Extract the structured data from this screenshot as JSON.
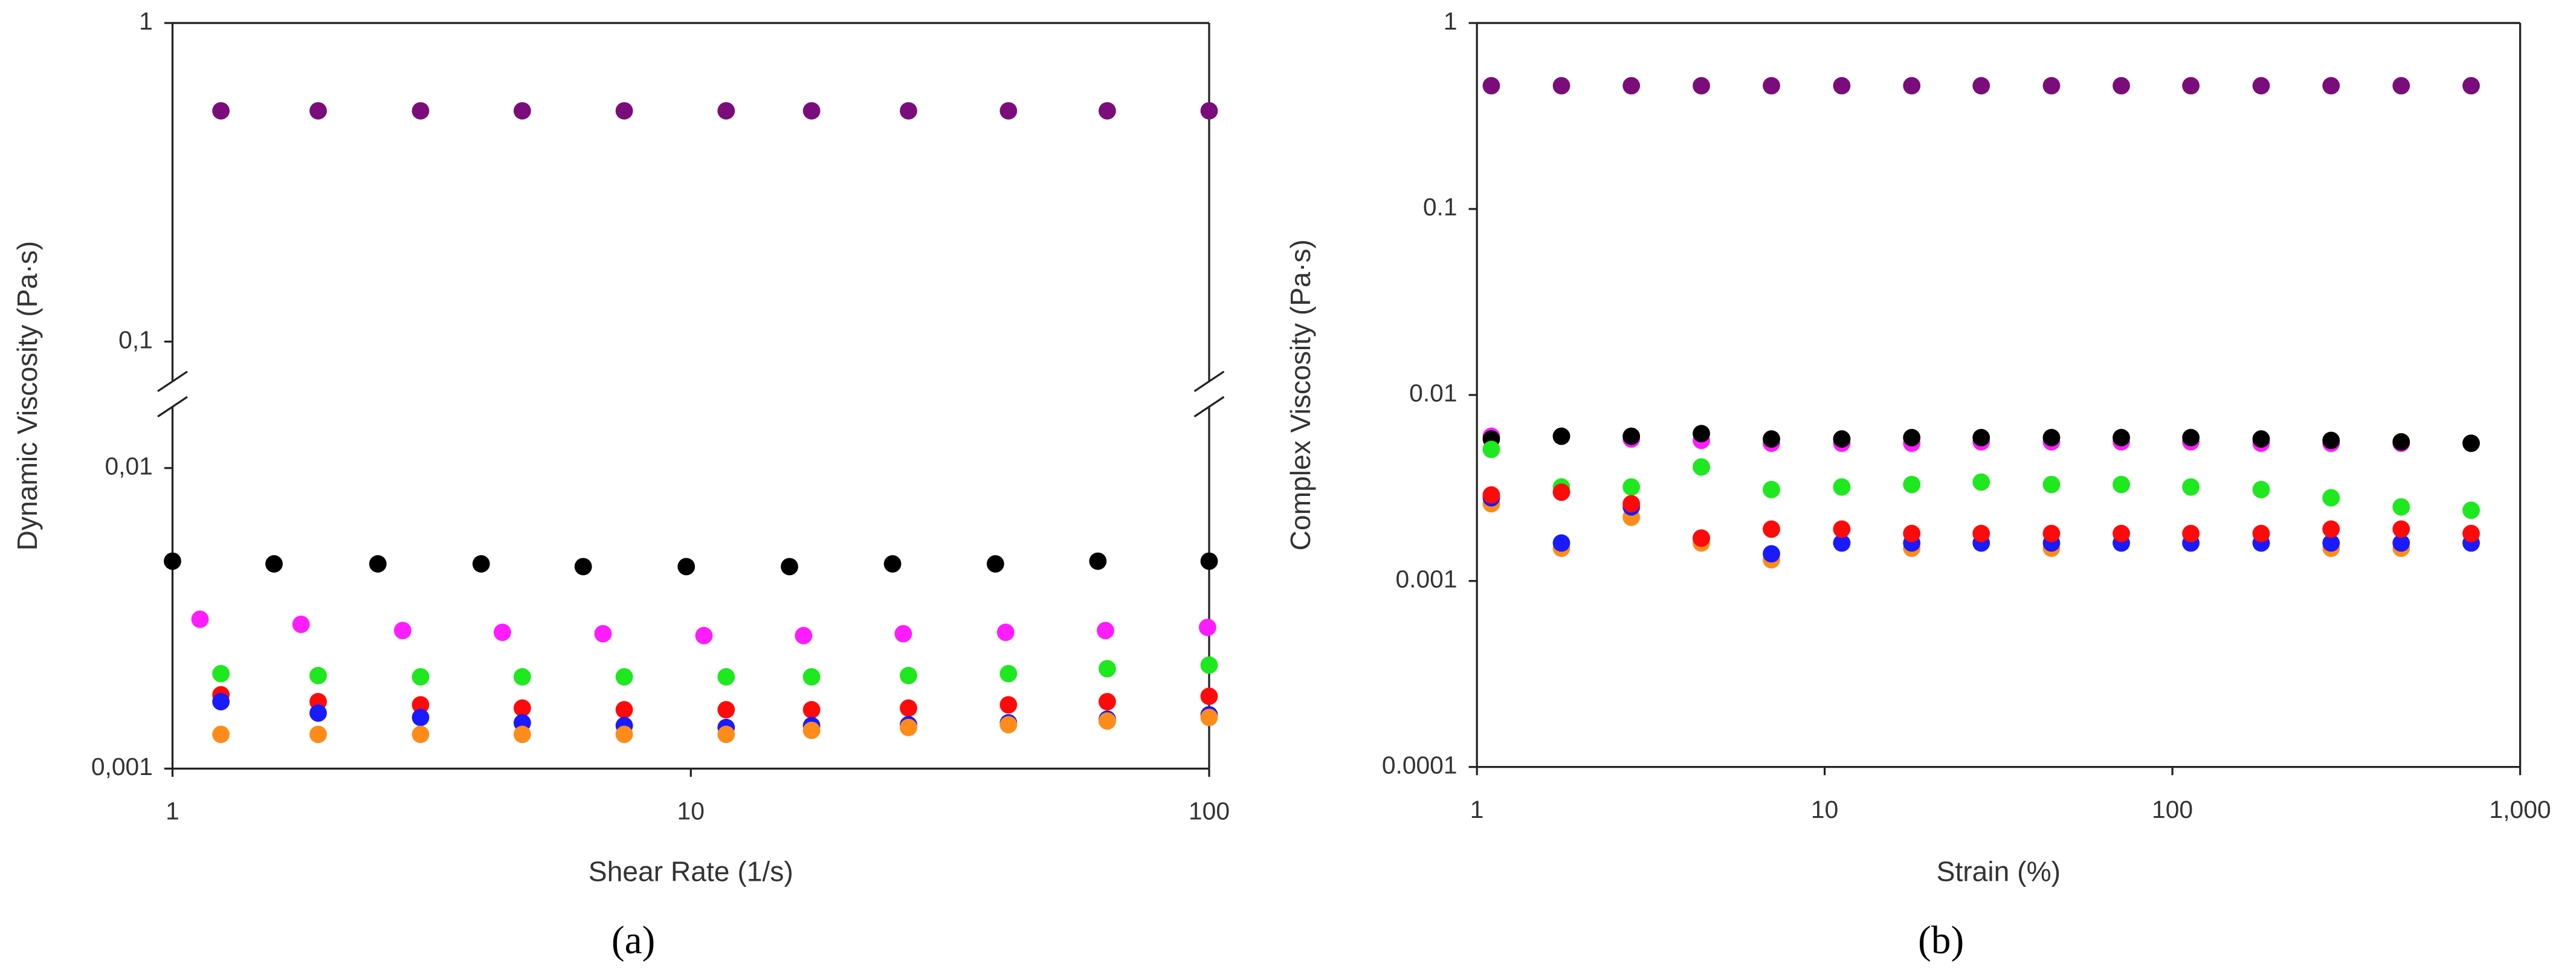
{
  "chart_data": [
    {
      "type": "scatter",
      "caption": "(a)",
      "xlabel": "Shear Rate (1/s)",
      "ylabel": "Dynamic Viscosity (Pa·s)",
      "xscale": "log",
      "yscale": "log",
      "xlim": [
        1,
        100
      ],
      "ylim": [
        0.001,
        1
      ],
      "ybreak": [
        0.016,
        0.075
      ],
      "xticks": [
        1,
        10,
        100
      ],
      "yticks": [
        {
          "value": 0.001,
          "label": "0,001"
        },
        {
          "value": 0.01,
          "label": "0,01"
        },
        {
          "value": 0.1,
          "label": "0,1"
        },
        1
      ],
      "series": [
        {
          "color": "#7b0c7b",
          "x": [
            1.24,
            1.91,
            3.01,
            4.73,
            7.44,
            11.7,
            17.1,
            26.3,
            41,
            63.6,
            100
          ],
          "values": [
            0.53,
            0.53,
            0.53,
            0.53,
            0.53,
            0.53,
            0.53,
            0.53,
            0.53,
            0.53,
            0.53
          ]
        },
        {
          "color": "#000000",
          "x": [
            1,
            1.57,
            2.49,
            3.94,
            6.2,
            9.8,
            15.5,
            24.5,
            38.7,
            61,
            100
          ],
          "values": [
            0.0049,
            0.0048,
            0.0048,
            0.0048,
            0.0047,
            0.0047,
            0.0047,
            0.0048,
            0.0048,
            0.0049,
            0.0049
          ]
        },
        {
          "color": "#ff1cff",
          "x": [
            1.13,
            1.77,
            2.78,
            4.33,
            6.77,
            10.6,
            16.5,
            25.7,
            40.5,
            63.1,
            99.3
          ],
          "values": [
            0.00314,
            0.00302,
            0.00288,
            0.00284,
            0.00281,
            0.00277,
            0.00277,
            0.00281,
            0.00284,
            0.00288,
            0.00295
          ]
        },
        {
          "color": "#1ee81e",
          "x": [
            1.24,
            1.91,
            3.01,
            4.73,
            7.44,
            11.7,
            17.1,
            26.3,
            41,
            63.6,
            100
          ],
          "values": [
            0.00207,
            0.00204,
            0.00202,
            0.00202,
            0.00202,
            0.00202,
            0.00202,
            0.00204,
            0.00207,
            0.00215,
            0.00221
          ]
        },
        {
          "color": "#ff0a0a",
          "x": [
            1.24,
            1.91,
            3.01,
            4.73,
            7.44,
            11.7,
            17.1,
            26.3,
            41,
            63.6,
            100
          ],
          "values": [
            0.00176,
            0.00167,
            0.00163,
            0.00159,
            0.00157,
            0.00157,
            0.00157,
            0.00159,
            0.00163,
            0.00167,
            0.00174
          ]
        },
        {
          "color": "#1a1aff",
          "x": [
            1.24,
            1.91,
            3.01,
            4.73,
            7.44,
            11.7,
            17.1,
            26.3,
            41,
            63.6,
            100
          ],
          "values": [
            0.00167,
            0.00153,
            0.00148,
            0.00142,
            0.00139,
            0.00137,
            0.00139,
            0.0014,
            0.00142,
            0.00146,
            0.00151
          ]
        },
        {
          "color": "#ff8c1a",
          "x": [
            1.24,
            1.91,
            3.01,
            4.73,
            7.44,
            11.7,
            17.1,
            26.3,
            41,
            63.6,
            100
          ],
          "values": [
            0.0013,
            0.0013,
            0.0013,
            0.0013,
            0.0013,
            0.0013,
            0.00134,
            0.00137,
            0.0014,
            0.00144,
            0.00148
          ]
        }
      ]
    },
    {
      "type": "scatter",
      "caption": "(b)",
      "xlabel": "Strain (%)",
      "ylabel": "Complex Viscosity (Pa·s)",
      "xscale": "log",
      "yscale": "log",
      "xlim": [
        1,
        1000
      ],
      "ylim": [
        0.0001,
        1
      ],
      "xticks": [
        1,
        10,
        100,
        {
          "value": 1000,
          "label": "1,000"
        }
      ],
      "yticks": [
        0.0001,
        0.001,
        0.01,
        0.1,
        1
      ],
      "series": [
        {
          "color": "#7b0c7b",
          "x": [
            1.1,
            1.75,
            2.78,
            4.42,
            7.03,
            11.2,
            17.8,
            28.2,
            44.9,
            71.3,
            113,
            180,
            286,
            455,
            723
          ],
          "values": [
            0.46,
            0.46,
            0.46,
            0.46,
            0.46,
            0.46,
            0.46,
            0.46,
            0.46,
            0.46,
            0.46,
            0.46,
            0.46,
            0.46,
            0.46
          ]
        },
        {
          "color": "#ff1cff",
          "x": [
            1.1,
            1.75,
            2.78,
            4.42,
            7.03,
            11.2,
            17.8,
            28.2,
            44.9,
            71.3,
            113,
            180,
            286,
            455,
            723
          ],
          "values": [
            0.006,
            0.006,
            0.0058,
            0.0057,
            0.0055,
            0.0055,
            0.0055,
            0.0056,
            0.0056,
            0.0056,
            0.0056,
            0.0055,
            0.0055,
            0.0055,
            0.0055
          ]
        },
        {
          "color": "#000000",
          "x": [
            1.1,
            1.75,
            2.78,
            4.42,
            7.03,
            11.2,
            17.8,
            28.2,
            44.9,
            71.3,
            113,
            180,
            286,
            455,
            723
          ],
          "values": [
            0.0058,
            0.006,
            0.006,
            0.0062,
            0.0058,
            0.0058,
            0.0059,
            0.0059,
            0.0059,
            0.0059,
            0.0059,
            0.0058,
            0.0057,
            0.0056,
            0.0055
          ]
        },
        {
          "color": "#1ee81e",
          "x": [
            1.1,
            1.75,
            2.78,
            4.42,
            7.03,
            11.2,
            17.8,
            28.2,
            44.9,
            71.3,
            113,
            180,
            286,
            455,
            723
          ],
          "values": [
            0.0051,
            0.0032,
            0.0032,
            0.0041,
            0.0031,
            0.0032,
            0.0033,
            0.0034,
            0.0033,
            0.0033,
            0.0032,
            0.0031,
            0.0028,
            0.0025,
            0.0024
          ]
        },
        {
          "color": "#ff8c1a",
          "x": [
            1.1,
            1.75,
            2.78,
            4.42,
            7.03,
            11.2,
            17.8,
            28.2,
            44.9,
            71.3,
            113,
            180,
            286,
            455,
            723
          ],
          "values": [
            0.0026,
            0.0015,
            0.0022,
            0.0016,
            0.0013,
            0.0016,
            0.0015,
            0.0016,
            0.0015,
            0.0016,
            0.0016,
            0.0016,
            0.0015,
            0.0015,
            0.0016
          ]
        },
        {
          "color": "#1a1aff",
          "x": [
            1.1,
            1.75,
            2.78,
            4.42,
            7.03,
            11.2,
            17.8,
            28.2,
            44.9,
            71.3,
            113,
            180,
            286,
            455,
            723
          ],
          "values": [
            0.0028,
            0.0016,
            0.0025,
            0.0017,
            0.0014,
            0.0016,
            0.0016,
            0.0016,
            0.0016,
            0.0016,
            0.0016,
            0.0016,
            0.0016,
            0.0016,
            0.0016
          ]
        },
        {
          "color": "#ff0a0a",
          "x": [
            1.1,
            1.75,
            2.78,
            4.42,
            7.03,
            11.2,
            17.8,
            28.2,
            44.9,
            71.3,
            113,
            180,
            286,
            455,
            723
          ],
          "values": [
            0.0029,
            0.003,
            0.0026,
            0.0017,
            0.0019,
            0.0019,
            0.0018,
            0.0018,
            0.0018,
            0.0018,
            0.0018,
            0.0018,
            0.0019,
            0.0019,
            0.0018
          ]
        }
      ]
    }
  ]
}
